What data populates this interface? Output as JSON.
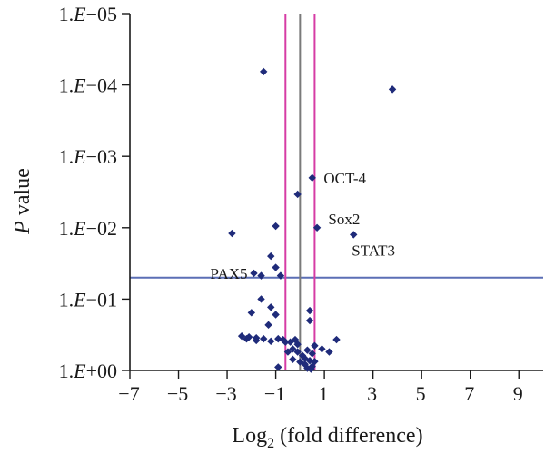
{
  "chart_data": {
    "type": "scatter",
    "xlabel_prefix": "Log",
    "xlabel_subscript": "2",
    "xlabel_suffix": " (fold difference)",
    "ylabel_italic": "P",
    "ylabel_rest": " value",
    "xlim": [
      -7,
      10
    ],
    "x_ticks": [
      -7,
      -5,
      -3,
      -1,
      1,
      3,
      5,
      7,
      9
    ],
    "y_scale": "log-reversed",
    "ylim": [
      1,
      1e-05
    ],
    "y_ticks": [
      {
        "value": 1,
        "label_mant": "1.",
        "label_e": "E",
        "label_exp": "+00"
      },
      {
        "value": 0.1,
        "label_mant": "1.",
        "label_e": "E",
        "label_exp": "−01"
      },
      {
        "value": 0.01,
        "label_mant": "1.",
        "label_e": "E",
        "label_exp": "−02"
      },
      {
        "value": 0.001,
        "label_mant": "1.",
        "label_e": "E",
        "label_exp": "−03"
      },
      {
        "value": 0.0001,
        "label_mant": "1.",
        "label_e": "E",
        "label_exp": "−04"
      },
      {
        "value": 1e-05,
        "label_mant": "1.",
        "label_e": "E",
        "label_exp": "−05"
      }
    ],
    "threshold_lines": {
      "vertical_gray_x": 0,
      "vertical_pink_x": [
        -0.6,
        0.6
      ],
      "horizontal_blue_p": 0.05,
      "colors": {
        "gray": "#7a7a7a",
        "pink": "#d63ca5",
        "blue": "#5b6fb5"
      }
    },
    "marker_color": "#1f2b7a",
    "labels": [
      {
        "text": "OCT-4",
        "x": 0.6,
        "p": 0.002
      },
      {
        "text": "Sox2",
        "x": 0.75,
        "p": 0.01
      },
      {
        "text": "STAT3",
        "x": 2.2,
        "p": 0.0125
      },
      {
        "text": "PAX5",
        "x": -1.9,
        "p": 0.0435
      }
    ],
    "points": [
      {
        "x": -1.5,
        "p": 6.5e-05
      },
      {
        "x": 3.8,
        "p": 0.000115
      },
      {
        "x": 0.5,
        "p": 0.002
      },
      {
        "x": -0.1,
        "p": 0.0034
      },
      {
        "x": -1.0,
        "p": 0.0095
      },
      {
        "x": 0.7,
        "p": 0.01
      },
      {
        "x": -2.8,
        "p": 0.012
      },
      {
        "x": 2.2,
        "p": 0.0125
      },
      {
        "x": -1.2,
        "p": 0.025
      },
      {
        "x": -1.0,
        "p": 0.036
      },
      {
        "x": -1.9,
        "p": 0.0435
      },
      {
        "x": -1.6,
        "p": 0.047
      },
      {
        "x": -0.8,
        "p": 0.047
      },
      {
        "x": -1.6,
        "p": 0.1
      },
      {
        "x": -1.2,
        "p": 0.13
      },
      {
        "x": 0.4,
        "p": 0.145
      },
      {
        "x": -2.0,
        "p": 0.155
      },
      {
        "x": -1.0,
        "p": 0.165
      },
      {
        "x": 0.4,
        "p": 0.2
      },
      {
        "x": -1.3,
        "p": 0.23
      },
      {
        "x": -2.4,
        "p": 0.33
      },
      {
        "x": -2.1,
        "p": 0.34
      },
      {
        "x": -1.8,
        "p": 0.35
      },
      {
        "x": -2.2,
        "p": 0.36
      },
      {
        "x": -1.5,
        "p": 0.36
      },
      {
        "x": -0.9,
        "p": 0.36
      },
      {
        "x": -0.7,
        "p": 0.37
      },
      {
        "x": -0.2,
        "p": 0.37
      },
      {
        "x": 1.5,
        "p": 0.37
      },
      {
        "x": -1.8,
        "p": 0.38
      },
      {
        "x": -1.2,
        "p": 0.39
      },
      {
        "x": -0.6,
        "p": 0.4
      },
      {
        "x": -0.4,
        "p": 0.4
      },
      {
        "x": -0.1,
        "p": 0.43
      },
      {
        "x": 0.6,
        "p": 0.45
      },
      {
        "x": -0.3,
        "p": 0.5
      },
      {
        "x": 0.9,
        "p": 0.5
      },
      {
        "x": 0.3,
        "p": 0.52
      },
      {
        "x": -0.5,
        "p": 0.55
      },
      {
        "x": -0.1,
        "p": 0.55
      },
      {
        "x": 1.2,
        "p": 0.55
      },
      {
        "x": 0.5,
        "p": 0.58
      },
      {
        "x": 0.1,
        "p": 0.62
      },
      {
        "x": 0.2,
        "p": 0.68
      },
      {
        "x": -0.3,
        "p": 0.7
      },
      {
        "x": 0.4,
        "p": 0.73
      },
      {
        "x": 0.6,
        "p": 0.75
      },
      {
        "x": 0.0,
        "p": 0.76
      },
      {
        "x": 0.2,
        "p": 0.82
      },
      {
        "x": 0.5,
        "p": 0.88
      },
      {
        "x": -0.9,
        "p": 0.9
      },
      {
        "x": 0.3,
        "p": 0.93
      },
      {
        "x": 0.45,
        "p": 0.96
      }
    ]
  }
}
